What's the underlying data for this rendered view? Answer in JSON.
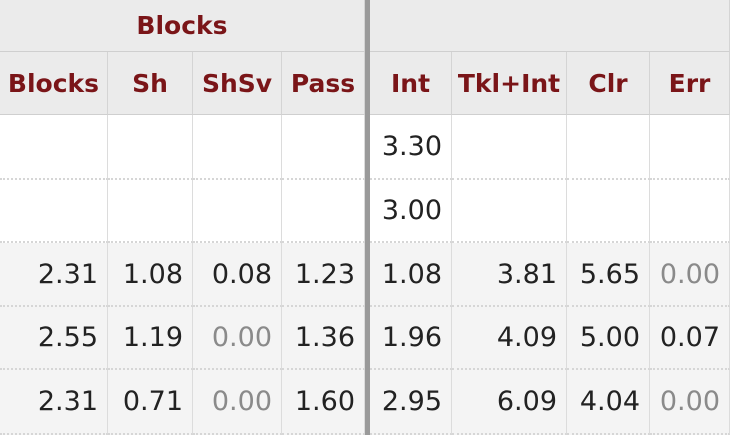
{
  "table": {
    "group_header": "Blocks",
    "columns": [
      "Blocks",
      "Sh",
      "ShSv",
      "Pass",
      "Int",
      "Tkl+Int",
      "Clr",
      "Err"
    ],
    "rows": [
      [
        null,
        null,
        null,
        null,
        "3.30",
        null,
        null,
        null
      ],
      [
        null,
        null,
        null,
        null,
        "3.00",
        null,
        null,
        null
      ],
      [
        "2.31",
        "1.08",
        "0.08",
        "1.23",
        "1.08",
        "3.81",
        "5.65",
        "0.00"
      ],
      [
        "2.55",
        "1.19",
        "0.00",
        "1.36",
        "1.96",
        "4.09",
        "5.00",
        "0.07"
      ],
      [
        "2.31",
        "0.71",
        "0.00",
        "1.60",
        "2.95",
        "6.09",
        "4.04",
        "0.00"
      ]
    ]
  }
}
